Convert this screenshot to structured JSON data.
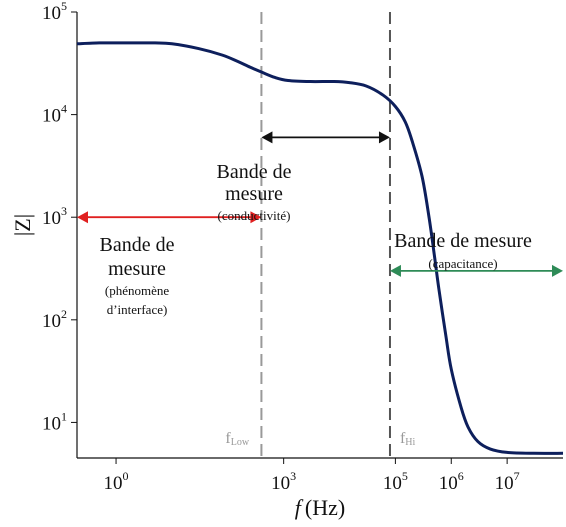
{
  "chart_data": {
    "type": "line",
    "title": "",
    "xlabel": "f (Hz)",
    "xlabel_italic_symbol": "f",
    "xlabel_unit": "(Hz)",
    "ylabel": "|Z|",
    "x_scale": "log",
    "y_scale": "log",
    "xlim": [
      0.2,
      100000000
    ],
    "ylim": [
      4.5,
      100000
    ],
    "grid": false,
    "x_ticks": [
      {
        "value": 1,
        "base": "10",
        "exp": "0"
      },
      {
        "value": 1000,
        "base": "10",
        "exp": "3"
      },
      {
        "value": 100000,
        "base": "10",
        "exp": "5"
      },
      {
        "value": 1000000,
        "base": "10",
        "exp": "6"
      },
      {
        "value": 10000000,
        "base": "10",
        "exp": "7"
      }
    ],
    "y_ticks": [
      {
        "value": 10,
        "base": "10",
        "exp": "1"
      },
      {
        "value": 100,
        "base": "10",
        "exp": "2"
      },
      {
        "value": 1000,
        "base": "10",
        "exp": "3"
      },
      {
        "value": 10000,
        "base": "10",
        "exp": "4"
      },
      {
        "value": 100000,
        "base": "10",
        "exp": "5"
      }
    ],
    "series": [
      {
        "color": "#0d1f5c",
        "x": [
          0.2,
          0.5,
          1,
          2,
          5,
          10,
          30,
          80,
          150,
          250,
          400,
          700,
          1200,
          3000,
          8000,
          15000,
          30000,
          60000,
          100000,
          150000,
          200000,
          300000,
          400000,
          500000,
          600000,
          800000,
          1000000,
          1500000,
          2000000,
          3000000,
          5000000,
          10000000,
          30000000,
          100000000
        ],
        "y": [
          49000,
          50000,
          50000,
          50000,
          50000,
          49000,
          44000,
          38000,
          33000,
          29000,
          26000,
          23000,
          21500,
          21000,
          21000,
          20500,
          19000,
          15500,
          12000,
          8500,
          5500,
          2500,
          1000,
          420,
          200,
          70,
          33,
          14,
          9,
          6.5,
          5.5,
          5.1,
          5.0,
          5.0
        ]
      }
    ],
    "vlines": [
      {
        "x": 400,
        "style": "dashed",
        "color": "#999999",
        "label_main": "f",
        "label_sub": "Low"
      },
      {
        "x": 80000,
        "style": "dashed",
        "color": "#555555",
        "label_main": "f",
        "label_sub": "Hi"
      }
    ],
    "annotations": [
      {
        "type": "arrow",
        "x1": 0.2,
        "x2": 400,
        "y": 1000,
        "color": "#e02020"
      },
      {
        "type": "arrow",
        "x1": 400,
        "x2": 80000,
        "y": 6000,
        "color": "#111111"
      },
      {
        "type": "arrow",
        "x1": 80000,
        "x2": 100000000,
        "y": 300,
        "color": "#2e8b57"
      }
    ],
    "band_labels": {
      "interface": {
        "line1": "Bande de",
        "line2": "mesure",
        "small1": "(phénomène",
        "small2": "d’interface)"
      },
      "conductivity": {
        "line1": "Bande de",
        "line2": "mesure",
        "small1": "(conductivité)"
      },
      "capacitance": {
        "line1": "Bande de mesure",
        "small1": "(capacitance)"
      }
    }
  }
}
